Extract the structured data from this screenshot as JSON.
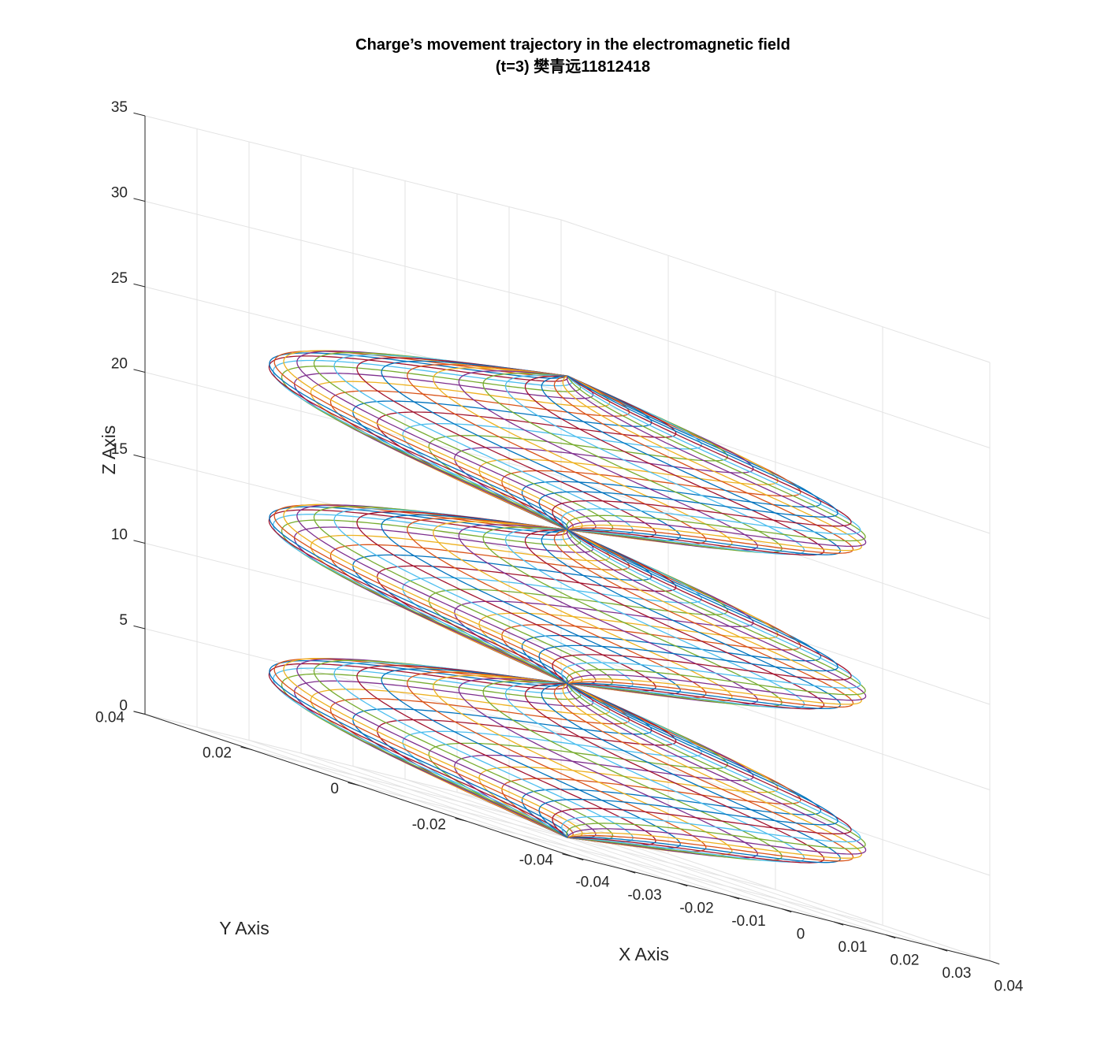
{
  "chart_data": {
    "type": "line",
    "dimension": "3d",
    "title": "Charge’s movement trajectory in the electromagnetic field",
    "subtitle": "(t=3) 樊青远11812418",
    "xlabel": "X Axis",
    "ylabel": "Y Axis",
    "zlabel": "Z Axis",
    "xlim": [
      -0.04,
      0.04
    ],
    "ylim": [
      -0.04,
      0.04
    ],
    "zlim": [
      0,
      35
    ],
    "xticks": [
      "-0.04",
      "-0.03",
      "-0.02",
      "-0.01",
      "0",
      "0.01",
      "0.02",
      "0.03",
      "0.04"
    ],
    "yticks": [
      "-0.04",
      "-0.02",
      "0",
      "0.02",
      "0.04"
    ],
    "zticks": [
      "0",
      "5",
      "10",
      "15",
      "20",
      "25",
      "30",
      "35"
    ],
    "grid": true,
    "description_of_series": "36 helical trajectories starting at the origin, loop radius 0.02, each rotated by 10 degrees about the z axis, rising to z about 27 over three turns",
    "helix": {
      "count": 36,
      "radius": 0.02,
      "z_start": 0,
      "z_end": 27,
      "turns": 3
    },
    "colors": [
      "#0072BD",
      "#D95319",
      "#EDB120",
      "#7E2F8E",
      "#77AC30",
      "#4DBEEE",
      "#A2142F"
    ]
  }
}
